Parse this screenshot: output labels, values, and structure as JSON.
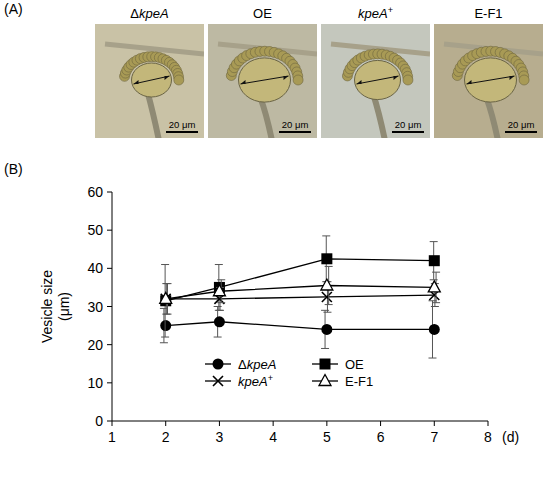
{
  "panel_a": {
    "label": "(A)",
    "images": [
      {
        "caption": "ΔkpeA",
        "scale_bar": "20 μm"
      },
      {
        "caption": "OE",
        "scale_bar": "20 μm"
      },
      {
        "caption": "kpeA+",
        "scale_bar": "20 μm"
      },
      {
        "caption": "E-F1",
        "scale_bar": "20 μm"
      }
    ]
  },
  "chart_data": {
    "type": "line",
    "panel_label": "(B)",
    "x_label": "(d)",
    "y_label": "Vesicle size (μm)",
    "x": [
      2,
      3,
      5,
      7
    ],
    "series": [
      {
        "name": "ΔkpeA",
        "color": "#000000",
        "marker": "circle",
        "line_style": "solid",
        "values": [
          25,
          26,
          24,
          24
        ],
        "errors": [
          4.5,
          4,
          5,
          7.5
        ]
      },
      {
        "name": "OE",
        "color": "#000000",
        "marker": "square",
        "line_style": "solid",
        "values": [
          31.5,
          35,
          42.5,
          42
        ],
        "errors": [
          9.5,
          6,
          6,
          5
        ]
      },
      {
        "name": "kpeA+",
        "color": "#000000",
        "marker": "x",
        "line_style": "solid",
        "values": [
          32,
          32,
          32.5,
          33
        ],
        "errors": [
          4,
          3,
          4,
          3
        ]
      },
      {
        "name": "E-F1",
        "color": "#000000",
        "marker": "triangle",
        "line_style": "solid",
        "values": [
          32,
          34,
          35.5,
          35
        ],
        "errors": [
          4,
          3,
          5,
          4
        ]
      }
    ],
    "xlim": [
      1,
      8
    ],
    "xticks": [
      1,
      2,
      3,
      4,
      5,
      6,
      7,
      8
    ],
    "ylim": [
      0,
      60
    ],
    "yticks": [
      0,
      10,
      20,
      30,
      40,
      50,
      60
    ],
    "grid": false,
    "legend": "bottom"
  }
}
